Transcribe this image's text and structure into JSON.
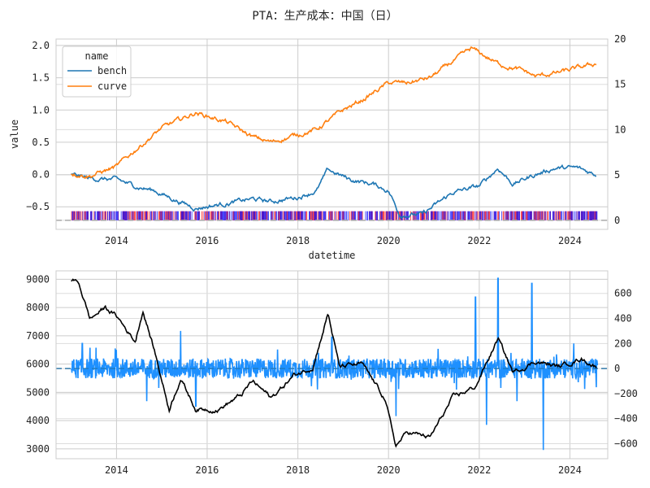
{
  "chart_data": {
    "title": "PTA：生产成本：中国（日）",
    "panels": [
      {
        "type": "line",
        "xlabel": "datetime",
        "ylabel": "value",
        "x_ticks": [
          "2014",
          "2016",
          "2018",
          "2020",
          "2022",
          "2024"
        ],
        "xlim": [
          "2012-09-01",
          "2024-11-01"
        ],
        "ylim": [
          -0.85,
          2.1
        ],
        "y_ticks": [
          2.0,
          1.5,
          1.0,
          0.5,
          0.0,
          -0.5
        ],
        "y_tick_labels": [
          "2.0",
          "1.5",
          "1.0",
          "0.5",
          "0.0",
          "−0.5"
        ],
        "y2lim": [
          -1,
          20
        ],
        "y2_ticks": [
          20,
          15,
          10,
          5,
          0
        ],
        "y2_tick_labels": [
          "20",
          "15",
          "10",
          "5",
          "0"
        ],
        "grid": true,
        "legend": {
          "title": "name",
          "placement": "top-left"
        },
        "series": [
          {
            "name": "bench",
            "color": "#1f77b4",
            "points": [
              [
                "2013-01-01",
                0.0
              ],
              [
                "2013-06-01",
                -0.06
              ],
              [
                "2014-01-01",
                -0.08
              ],
              [
                "2014-06-01",
                -0.18
              ],
              [
                "2014-11-01",
                -0.25
              ],
              [
                "2015-04-01",
                -0.38
              ],
              [
                "2015-10-01",
                -0.52
              ],
              [
                "2016-06-01",
                -0.45
              ],
              [
                "2017-01-01",
                -0.38
              ],
              [
                "2017-06-01",
                -0.42
              ],
              [
                "2018-01-01",
                -0.35
              ],
              [
                "2018-06-01",
                -0.25
              ],
              [
                "2018-09-01",
                0.07
              ],
              [
                "2019-03-01",
                -0.08
              ],
              [
                "2019-09-01",
                -0.15
              ],
              [
                "2020-01-01",
                -0.25
              ],
              [
                "2020-04-01",
                -0.62
              ],
              [
                "2020-10-01",
                -0.62
              ],
              [
                "2021-06-01",
                -0.28
              ],
              [
                "2022-01-01",
                -0.18
              ],
              [
                "2022-06-01",
                0.1
              ],
              [
                "2022-10-01",
                -0.15
              ],
              [
                "2023-03-01",
                -0.02
              ],
              [
                "2023-09-01",
                0.1
              ],
              [
                "2024-03-01",
                0.1
              ],
              [
                "2024-08-01",
                0.0
              ]
            ]
          },
          {
            "name": "curve",
            "color": "#ff7f0e",
            "points": [
              [
                "2013-01-01",
                0.02
              ],
              [
                "2013-06-01",
                -0.02
              ],
              [
                "2014-01-01",
                0.12
              ],
              [
                "2014-06-01",
                0.38
              ],
              [
                "2015-01-01",
                0.72
              ],
              [
                "2015-04-01",
                0.8
              ],
              [
                "2015-10-01",
                0.96
              ],
              [
                "2016-06-01",
                0.82
              ],
              [
                "2017-01-01",
                0.58
              ],
              [
                "2017-06-01",
                0.5
              ],
              [
                "2018-01-01",
                0.62
              ],
              [
                "2018-06-01",
                0.7
              ],
              [
                "2019-01-01",
                1.0
              ],
              [
                "2019-06-01",
                1.15
              ],
              [
                "2020-01-01",
                1.42
              ],
              [
                "2020-06-01",
                1.42
              ],
              [
                "2020-12-01",
                1.5
              ],
              [
                "2021-06-01",
                1.75
              ],
              [
                "2021-11-01",
                1.95
              ],
              [
                "2022-06-01",
                1.72
              ],
              [
                "2023-01-01",
                1.6
              ],
              [
                "2023-04-01",
                1.52
              ],
              [
                "2023-10-01",
                1.58
              ],
              [
                "2024-04-01",
                1.66
              ],
              [
                "2024-08-01",
                1.72
              ]
            ]
          }
        ],
        "y2_bars": [
          {
            "name": "red-bars",
            "color": "#ff0000",
            "height": 1.0
          },
          {
            "name": "blue-bars",
            "color": "#0000ff",
            "height": 1.0
          }
        ],
        "baseline": {
          "value": 0,
          "axis": "y2",
          "color": "#aaaaaa"
        }
      },
      {
        "type": "line",
        "x_ticks": [
          "2014",
          "2016",
          "2018",
          "2020",
          "2022",
          "2024"
        ],
        "xlim": [
          "2012-09-01",
          "2024-11-01"
        ],
        "ylim": [
          2650,
          9300
        ],
        "y_ticks": [
          9000,
          8000,
          7000,
          6000,
          5000,
          4000,
          3000
        ],
        "y_tick_labels": [
          "9000",
          "8000",
          "7000",
          "6000",
          "5000",
          "4000",
          "3000"
        ],
        "y2lim": [
          -720,
          780
        ],
        "y2_ticks": [
          600,
          400,
          200,
          0,
          -200,
          -400,
          -600
        ],
        "y2_tick_labels": [
          "600",
          "400",
          "200",
          "0",
          "−200",
          "−400",
          "−600"
        ],
        "grid": true,
        "series": [
          {
            "name": "",
            "color": "#000000",
            "points": [
              [
                "2013-01-01",
                8950
              ],
              [
                "2013-03-01",
                8900
              ],
              [
                "2013-06-01",
                7600
              ],
              [
                "2013-10-01",
                8000
              ],
              [
                "2014-01-01",
                7700
              ],
              [
                "2014-06-01",
                6800
              ],
              [
                "2014-08-01",
                7900
              ],
              [
                "2014-11-01",
                6500
              ],
              [
                "2015-03-01",
                4400
              ],
              [
                "2015-06-01",
                5500
              ],
              [
                "2015-10-01",
                4400
              ],
              [
                "2016-04-01",
                4400
              ],
              [
                "2016-10-01",
                4900
              ],
              [
                "2017-01-01",
                5400
              ],
              [
                "2017-06-01",
                4800
              ],
              [
                "2017-12-01",
                5600
              ],
              [
                "2018-05-01",
                5900
              ],
              [
                "2018-09-01",
                7800
              ],
              [
                "2018-12-01",
                5900
              ],
              [
                "2019-06-01",
                6000
              ],
              [
                "2019-12-01",
                4800
              ],
              [
                "2020-03-01",
                3100
              ],
              [
                "2020-06-01",
                3600
              ],
              [
                "2020-12-01",
                3400
              ],
              [
                "2021-06-01",
                4800
              ],
              [
                "2021-12-01",
                5200
              ],
              [
                "2022-06-01",
                6900
              ],
              [
                "2022-10-01",
                5700
              ],
              [
                "2023-04-01",
                6100
              ],
              [
                "2023-10-01",
                5900
              ],
              [
                "2024-04-01",
                6200
              ],
              [
                "2024-08-01",
                5900
              ]
            ]
          }
        ],
        "y2_series": {
          "name": "",
          "color": "#1e90ff",
          "spikes": [
            [
              "2013-04-01",
              200
            ],
            [
              "2014-09-01",
              -260
            ],
            [
              "2015-06-01",
              300
            ],
            [
              "2015-10-01",
              -300
            ],
            [
              "2018-10-01",
              250
            ],
            [
              "2020-03-01",
              -380
            ],
            [
              "2021-12-01",
              570
            ],
            [
              "2022-03-01",
              -450
            ],
            [
              "2022-06-01",
              720
            ],
            [
              "2022-11-01",
              -260
            ],
            [
              "2023-03-01",
              680
            ],
            [
              "2023-06-01",
              -650
            ],
            [
              "2024-02-01",
              200
            ]
          ]
        },
        "baseline": {
          "value": 0,
          "axis": "y2",
          "color": "#aaaaaa"
        }
      }
    ]
  }
}
